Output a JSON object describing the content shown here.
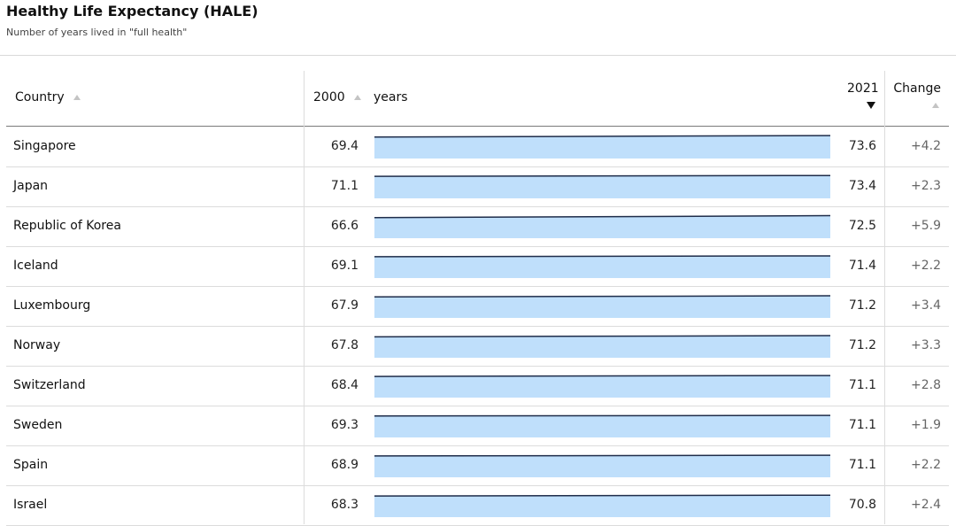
{
  "header": {
    "title": "Healthy Life Expectancy (HALE)",
    "subtitle": "Number of years lived in \"full health\""
  },
  "table": {
    "columns": {
      "country": "Country",
      "start_year": "2000",
      "unit": "years",
      "end_year": "2021",
      "change": "Change"
    }
  },
  "colors": {
    "bar_fill": "#bfdffb",
    "bar_line": "#1f2d4a"
  },
  "chart_data": {
    "type": "table",
    "title": "Healthy Life Expectancy (HALE)",
    "subtitle": "Number of years lived in \"full health\"",
    "unit": "years",
    "sort": {
      "column": "2021",
      "order": "descending"
    },
    "columns": [
      "Country",
      "2000",
      "2021",
      "Change"
    ],
    "rows": [
      {
        "country": "Singapore",
        "v2000": 69.4,
        "v2021": 73.6,
        "change": "+4.2"
      },
      {
        "country": "Japan",
        "v2000": 71.1,
        "v2021": 73.4,
        "change": "+2.3"
      },
      {
        "country": "Republic of Korea",
        "v2000": 66.6,
        "v2021": 72.5,
        "change": "+5.9"
      },
      {
        "country": "Iceland",
        "v2000": 69.1,
        "v2021": 71.4,
        "change": "+2.2"
      },
      {
        "country": "Luxembourg",
        "v2000": 67.9,
        "v2021": 71.2,
        "change": "+3.4"
      },
      {
        "country": "Norway",
        "v2000": 67.8,
        "v2021": 71.2,
        "change": "+3.3"
      },
      {
        "country": "Switzerland",
        "v2000": 68.4,
        "v2021": 71.1,
        "change": "+2.8"
      },
      {
        "country": "Sweden",
        "v2000": 69.3,
        "v2021": 71.1,
        "change": "+1.9"
      },
      {
        "country": "Spain",
        "v2000": 68.9,
        "v2021": 71.1,
        "change": "+2.2"
      },
      {
        "country": "Israel",
        "v2000": 68.3,
        "v2021": 70.8,
        "change": "+2.4"
      }
    ]
  }
}
